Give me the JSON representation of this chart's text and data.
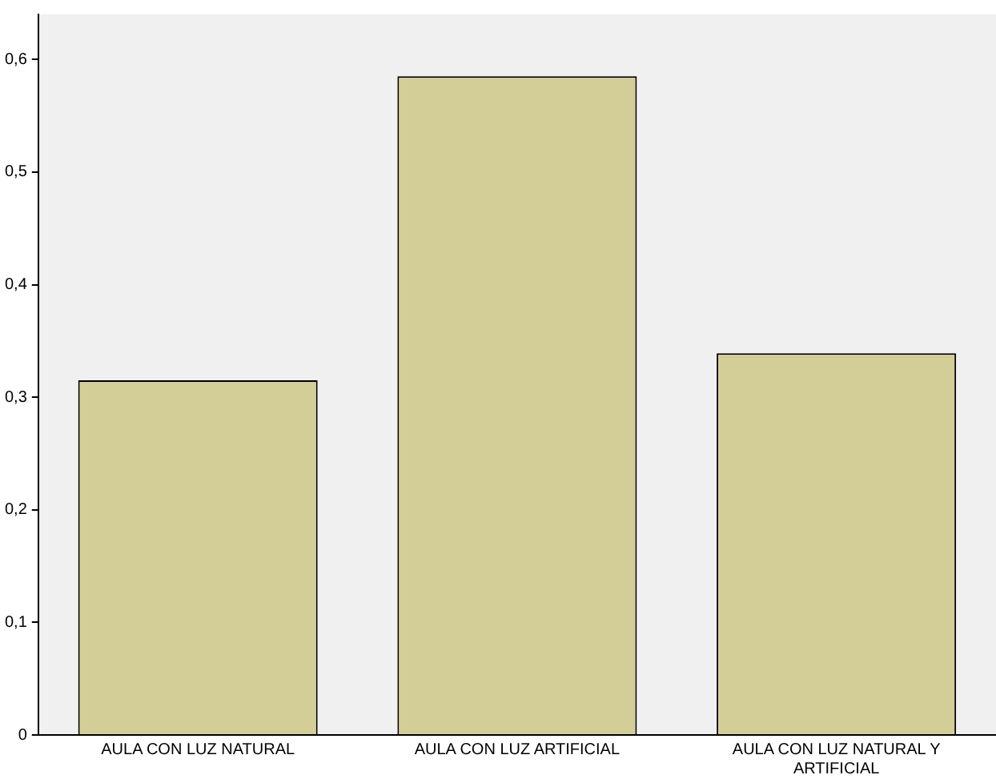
{
  "chart_data": {
    "type": "bar",
    "categories": [
      "AULA CON LUZ NATURAL",
      "AULA CON LUZ ARTIFICIAL",
      "AULA CON LUZ NATURAL Y ARTIFICIAL"
    ],
    "values": [
      0.315,
      0.585,
      0.339
    ],
    "color": "#d3ce98",
    "ylim": [
      0,
      0.64
    ],
    "yticks": [
      0,
      {
        "value": 0.1,
        "label": "0,1"
      },
      {
        "value": 0.2,
        "label": "0,2"
      },
      {
        "value": 0.3,
        "label": "0,3"
      },
      {
        "value": 0.4,
        "label": "0,4"
      },
      {
        "value": 0.5,
        "label": "0,5"
      },
      {
        "value": 0.6,
        "label": "0,6"
      }
    ],
    "grid": false,
    "legend": false
  }
}
